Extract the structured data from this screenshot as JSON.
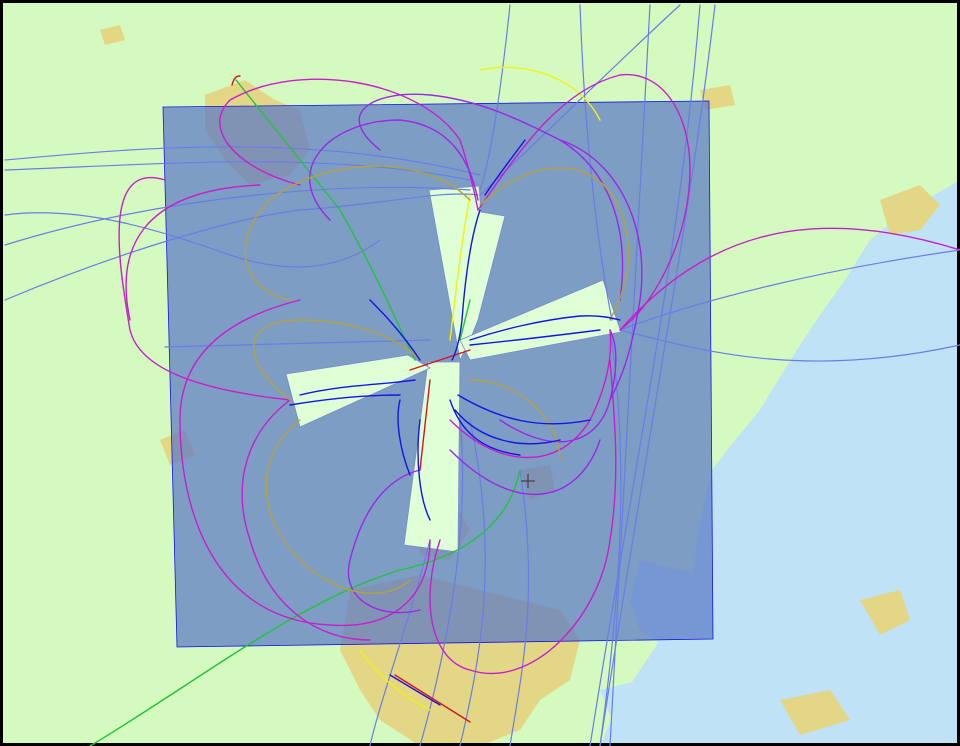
{
  "map": {
    "colors": {
      "land": "#d4fac0",
      "urban": "#e3d685",
      "water": "#bfe2f6",
      "zone_fill": "#5b79c6",
      "zone_opacity": 0.72,
      "corridor": "#dfffd6",
      "frame": "#000000",
      "track_blue": "#1414e6",
      "track_slate": "#6a7ce6",
      "track_magenta": "#c81ecc",
      "track_violet": "#9a28e6",
      "track_olive": "#b4a23c",
      "track_yellow": "#f2f20a",
      "track_green": "#22c33c",
      "track_red": "#d8141e"
    },
    "layers": [
      "land-base",
      "urban-areas",
      "water-bodies",
      "control-zone",
      "runway-corridors",
      "flight-tracks",
      "center-marker"
    ],
    "marker": {
      "symbol": "+"
    }
  }
}
